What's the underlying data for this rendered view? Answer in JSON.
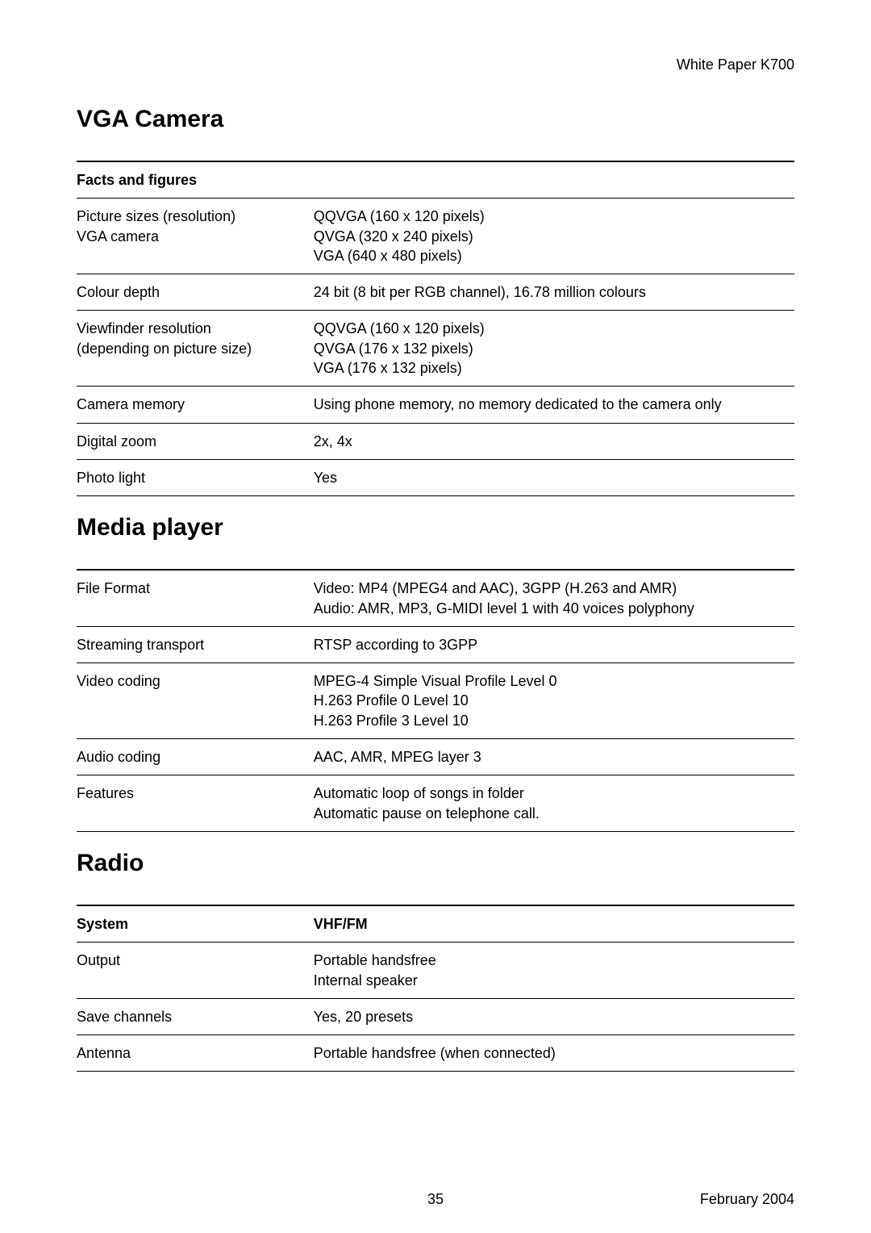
{
  "header": {
    "prefix": "White Paper ",
    "model": "K700"
  },
  "sections": {
    "vga": {
      "title": "VGA Camera",
      "thead_label": "Facts and figures",
      "thead_value": "",
      "rows": [
        {
          "label": "Picture sizes (resolution)\nVGA camera",
          "value": "QQVGA (160 x 120 pixels)\nQVGA (320 x 240 pixels)\nVGA (640 x 480 pixels)"
        },
        {
          "label": "Colour depth",
          "value": "24 bit (8 bit per RGB channel), 16.78 million colours"
        },
        {
          "label": "Viewfinder resolution\n(depending on picture size)",
          "value": "QQVGA (160 x 120 pixels)\nQVGA (176 x 132 pixels)\nVGA (176 x 132 pixels)"
        },
        {
          "label": "Camera memory",
          "value": "Using phone memory, no memory dedicated to the camera only"
        },
        {
          "label": "Digital zoom",
          "value": "2x, 4x"
        },
        {
          "label": "Photo light",
          "value": "Yes"
        }
      ]
    },
    "media": {
      "title": "Media player",
      "rows": [
        {
          "label": "File Format",
          "value": "Video: MP4 (MPEG4 and AAC), 3GPP (H.263 and AMR)\nAudio: AMR, MP3, G-MIDI level 1 with 40 voices polyphony"
        },
        {
          "label": "Streaming transport",
          "value": "RTSP according to 3GPP"
        },
        {
          "label": "Video coding",
          "value": "MPEG-4 Simple Visual Profile Level 0\nH.263 Profile 0 Level 10\nH.263 Profile 3 Level 10"
        },
        {
          "label": "Audio coding",
          "value": "AAC, AMR, MPEG layer 3"
        },
        {
          "label": "Features",
          "value": "Automatic loop of songs in folder\nAutomatic pause on telephone call."
        }
      ]
    },
    "radio": {
      "title": "Radio",
      "thead_label": "System",
      "thead_value": "VHF/FM",
      "rows": [
        {
          "label": "Output",
          "value": "Portable handsfree\nInternal speaker"
        },
        {
          "label": "Save channels",
          "value": "Yes, 20 presets"
        },
        {
          "label": "Antenna",
          "value": "Portable handsfree (when connected)"
        }
      ]
    }
  },
  "footer": {
    "page": "35",
    "date": "February 2004"
  }
}
